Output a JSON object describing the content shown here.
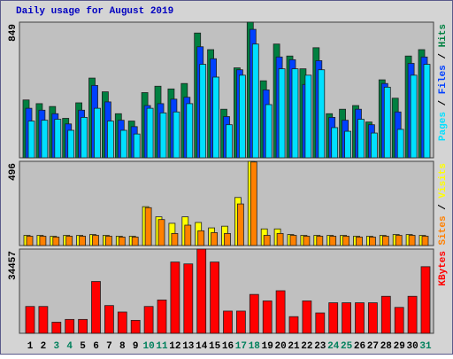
{
  "chart_data": [
    {
      "type": "bar",
      "title": "Daily usage for August 2019",
      "ylim": [
        0,
        849
      ],
      "yticks": [
        849
      ],
      "separator": " / ",
      "series": [
        {
          "name": "Hits",
          "color": "#008040",
          "values": [
            362,
            339,
            321,
            247,
            344,
            499,
            413,
            276,
            230,
            408,
            448,
            431,
            465,
            781,
            677,
            304,
            563,
            849,
            482,
            712,
            637,
            557,
            689,
            276,
            304,
            327,
            224,
            488,
            373,
            637,
            677
          ]
        },
        {
          "name": "Files",
          "color": "#0040ff",
          "values": [
            310,
            298,
            276,
            212,
            298,
            453,
            350,
            235,
            195,
            327,
            339,
            367,
            379,
            695,
            620,
            258,
            551,
            804,
            425,
            631,
            614,
            459,
            608,
            253,
            235,
            304,
            207,
            465,
            287,
            591,
            631
          ]
        },
        {
          "name": "Pages",
          "color": "#00e0ff",
          "values": [
            230,
            235,
            241,
            172,
            253,
            310,
            230,
            172,
            149,
            310,
            281,
            287,
            339,
            585,
            505,
            207,
            517,
            712,
            333,
            557,
            557,
            517,
            551,
            189,
            166,
            241,
            155,
            442,
            178,
            517,
            585
          ]
        }
      ]
    },
    {
      "type": "bar",
      "ylim": [
        0,
        496
      ],
      "yticks": [
        496
      ],
      "separator": " / ",
      "series": [
        {
          "name": "Visits",
          "color": "#ffff00",
          "values": [
            60,
            60,
            55,
            60,
            60,
            65,
            60,
            55,
            55,
            229,
            169,
            131,
            169,
            136,
            104,
            114,
            283,
            496,
            98,
            98,
            65,
            60,
            60,
            60,
            60,
            55,
            55,
            60,
            65,
            65,
            60
          ]
        },
        {
          "name": "Sites",
          "color": "#ff8000",
          "values": [
            55,
            55,
            50,
            55,
            55,
            60,
            55,
            50,
            50,
            223,
            153,
            71,
            120,
            87,
            76,
            71,
            245,
            492,
            60,
            71,
            60,
            55,
            55,
            55,
            55,
            50,
            50,
            55,
            60,
            60,
            55
          ]
        }
      ]
    },
    {
      "type": "bar",
      "ylim": [
        0,
        34457
      ],
      "yticks": [
        34457
      ],
      "categories": [
        "1",
        "2",
        "3",
        "4",
        "5",
        "6",
        "7",
        "8",
        "9",
        "10",
        "11",
        "12",
        "13",
        "14",
        "15",
        "16",
        "17",
        "18",
        "19",
        "20",
        "21",
        "22",
        "23",
        "24",
        "25",
        "26",
        "27",
        "28",
        "29",
        "30",
        "31"
      ],
      "weekend_days": [
        "3",
        "4",
        "10",
        "11",
        "17",
        "18",
        "24",
        "25",
        "31"
      ],
      "weekend_color": "#00805c",
      "series": [
        {
          "name": "KBytes",
          "color": "#ff0000",
          "values": [
            10980,
            10980,
            4543,
            5679,
            5679,
            21202,
            11358,
            8708,
            5300,
            10980,
            13630,
            29153,
            28395,
            34457,
            29153,
            9087,
            9087,
            15902,
            13251,
            17416,
            6815,
            13251,
            8329,
            12494,
            12494,
            12494,
            12494,
            15144,
            10601,
            15144,
            27260
          ]
        }
      ]
    }
  ]
}
